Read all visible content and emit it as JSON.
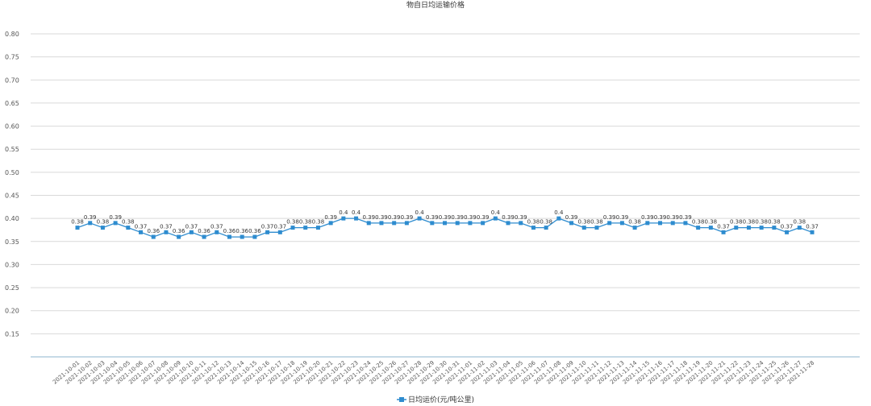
{
  "chart_data": {
    "type": "line",
    "title": "物自日均运输价格",
    "xlabel": "",
    "ylabel": "",
    "ylim": [
      0.1,
      0.8
    ],
    "yticks": [
      "0.15",
      "0.20",
      "0.25",
      "0.30",
      "0.35",
      "0.40",
      "0.45",
      "0.50",
      "0.55",
      "0.60",
      "0.65",
      "0.70",
      "0.75",
      "0.80"
    ],
    "grid": true,
    "legend_position": "bottom",
    "colors": {
      "series": "#2e8ccf",
      "grid": "#d9d9d9",
      "axis": "#8eb4cc"
    },
    "x": [
      "2021-10-01",
      "2021-10-02",
      "2021-10-03",
      "2021-10-04",
      "2021-10-05",
      "2021-10-06",
      "2021-10-07",
      "2021-10-08",
      "2021-10-09",
      "2021-10-10",
      "2021-10-11",
      "2021-10-12",
      "2021-10-13",
      "2021-10-14",
      "2021-10-15",
      "2021-10-16",
      "2021-10-17",
      "2021-10-18",
      "2021-10-19",
      "2021-10-20",
      "2021-10-21",
      "2021-10-22",
      "2021-10-23",
      "2021-10-24",
      "2021-10-25",
      "2021-10-26",
      "2021-10-27",
      "2021-10-28",
      "2021-10-29",
      "2021-10-30",
      "2021-10-31",
      "2021-11-01",
      "2021-11-02",
      "2021-11-03",
      "2021-11-04",
      "2021-11-05",
      "2021-11-06",
      "2021-11-07",
      "2021-11-08",
      "2021-11-09",
      "2021-11-10",
      "2021-11-11",
      "2021-11-12",
      "2021-11-13",
      "2021-11-14",
      "2021-11-15",
      "2021-11-16",
      "2021-11-17",
      "2021-11-18",
      "2021-11-19",
      "2021-11-20",
      "2021-11-21",
      "2021-11-22",
      "2021-11-23",
      "2021-11-24",
      "2021-11-25",
      "2021-11-26",
      "2021-11-27",
      "2021-11-28"
    ],
    "series": [
      {
        "name": "日均运价(元/吨公里)",
        "values": [
          0.38,
          0.39,
          0.38,
          0.39,
          0.38,
          0.37,
          0.36,
          0.37,
          0.36,
          0.37,
          0.36,
          0.37,
          0.36,
          0.36,
          0.36,
          0.37,
          0.37,
          0.38,
          0.38,
          0.38,
          0.39,
          0.4,
          0.4,
          0.39,
          0.39,
          0.39,
          0.39,
          0.4,
          0.39,
          0.39,
          0.39,
          0.39,
          0.39,
          0.4,
          0.39,
          0.39,
          0.38,
          0.38,
          0.4,
          0.39,
          0.38,
          0.38,
          0.39,
          0.39,
          0.38,
          0.39,
          0.39,
          0.39,
          0.39,
          0.38,
          0.38,
          0.37,
          0.38,
          0.38,
          0.38,
          0.38,
          0.37,
          0.38,
          0.37
        ]
      }
    ]
  }
}
